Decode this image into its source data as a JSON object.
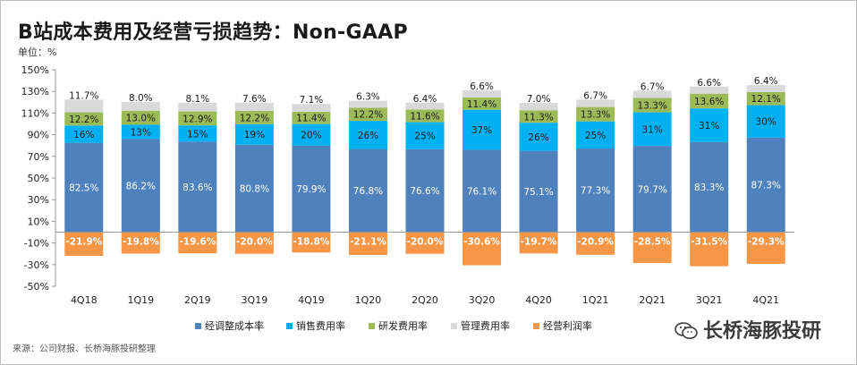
{
  "title": "B站成本费用及经营亏损趋势：Non-GAAP",
  "unit_label": "单位：%",
  "source": "来源：公司财报、长桥海豚投研整理",
  "watermark": "长桥海豚投研",
  "chart_data": {
    "type": "bar",
    "stacked": true,
    "categories": [
      "4Q18",
      "1Q19",
      "2Q19",
      "3Q19",
      "4Q19",
      "1Q20",
      "2Q20",
      "3Q20",
      "4Q20",
      "1Q21",
      "2Q21",
      "3Q21",
      "4Q21"
    ],
    "ylim": [
      -50,
      150
    ],
    "yticks": [
      -50,
      -30,
      -10,
      10,
      30,
      50,
      70,
      90,
      110,
      130,
      150
    ],
    "ytick_labels": [
      "-50%",
      "-30%",
      "-10%",
      "10%",
      "30%",
      "50%",
      "70%",
      "90%",
      "110%",
      "130%",
      "150%"
    ],
    "grid": false,
    "legend_position": "bottom",
    "series": [
      {
        "name": "经调整成本率",
        "color": "#4f81bd",
        "values": [
          82.5,
          86.2,
          83.6,
          80.8,
          79.9,
          76.8,
          76.6,
          76.1,
          75.1,
          77.3,
          79.7,
          83.3,
          87.3
        ],
        "labels": [
          "82.5%",
          "86.2%",
          "83.6%",
          "80.8%",
          "79.9%",
          "76.8%",
          "76.6%",
          "76.1%",
          "75.1%",
          "77.3%",
          "79.7%",
          "83.3%",
          "87.3%"
        ]
      },
      {
        "name": "销售费用率",
        "color": "#00b0f0",
        "values": [
          16,
          13,
          15,
          19,
          20,
          26,
          25,
          37,
          26,
          25,
          31,
          31,
          30
        ],
        "labels": [
          "16%",
          "13%",
          "15%",
          "19%",
          "20%",
          "26%",
          "25%",
          "37%",
          "26%",
          "25%",
          "31%",
          "31%",
          "30%"
        ]
      },
      {
        "name": "研发费用率",
        "color": "#9bbb59",
        "values": [
          12.2,
          13.0,
          12.9,
          12.2,
          11.4,
          12.2,
          11.6,
          11.4,
          11.3,
          13.3,
          13.3,
          13.6,
          12.1
        ],
        "labels": [
          "12.2%",
          "13.0%",
          "12.9%",
          "12.2%",
          "11.4%",
          "12.2%",
          "11.6%",
          "11.4%",
          "11.3%",
          "13.3%",
          "13.3%",
          "13.6%",
          "12.1%"
        ]
      },
      {
        "name": "管理费用率",
        "color": "#d9d9d9",
        "values": [
          11.7,
          8.0,
          8.1,
          7.6,
          7.1,
          6.3,
          6.4,
          6.6,
          7.0,
          6.7,
          6.7,
          6.6,
          6.4
        ],
        "labels": [
          "11.7%",
          "8.0%",
          "8.1%",
          "7.6%",
          "7.1%",
          "6.3%",
          "6.4%",
          "6.6%",
          "7.0%",
          "6.7%",
          "6.7%",
          "6.6%",
          "6.4%"
        ]
      },
      {
        "name": "经营利润率",
        "color": "#f79646",
        "values": [
          -21.9,
          -19.8,
          -19.6,
          -20.0,
          -18.8,
          -21.1,
          -20.0,
          -30.6,
          -19.7,
          -20.9,
          -28.5,
          -31.5,
          -29.3
        ],
        "labels": [
          "-21.9%",
          "-19.8%",
          "-19.6%",
          "-20.0%",
          "-18.8%",
          "-21.1%",
          "-20.0%",
          "-30.6%",
          "-19.7%",
          "-20.9%",
          "-28.5%",
          "-31.5%",
          "-29.3%"
        ]
      }
    ]
  }
}
